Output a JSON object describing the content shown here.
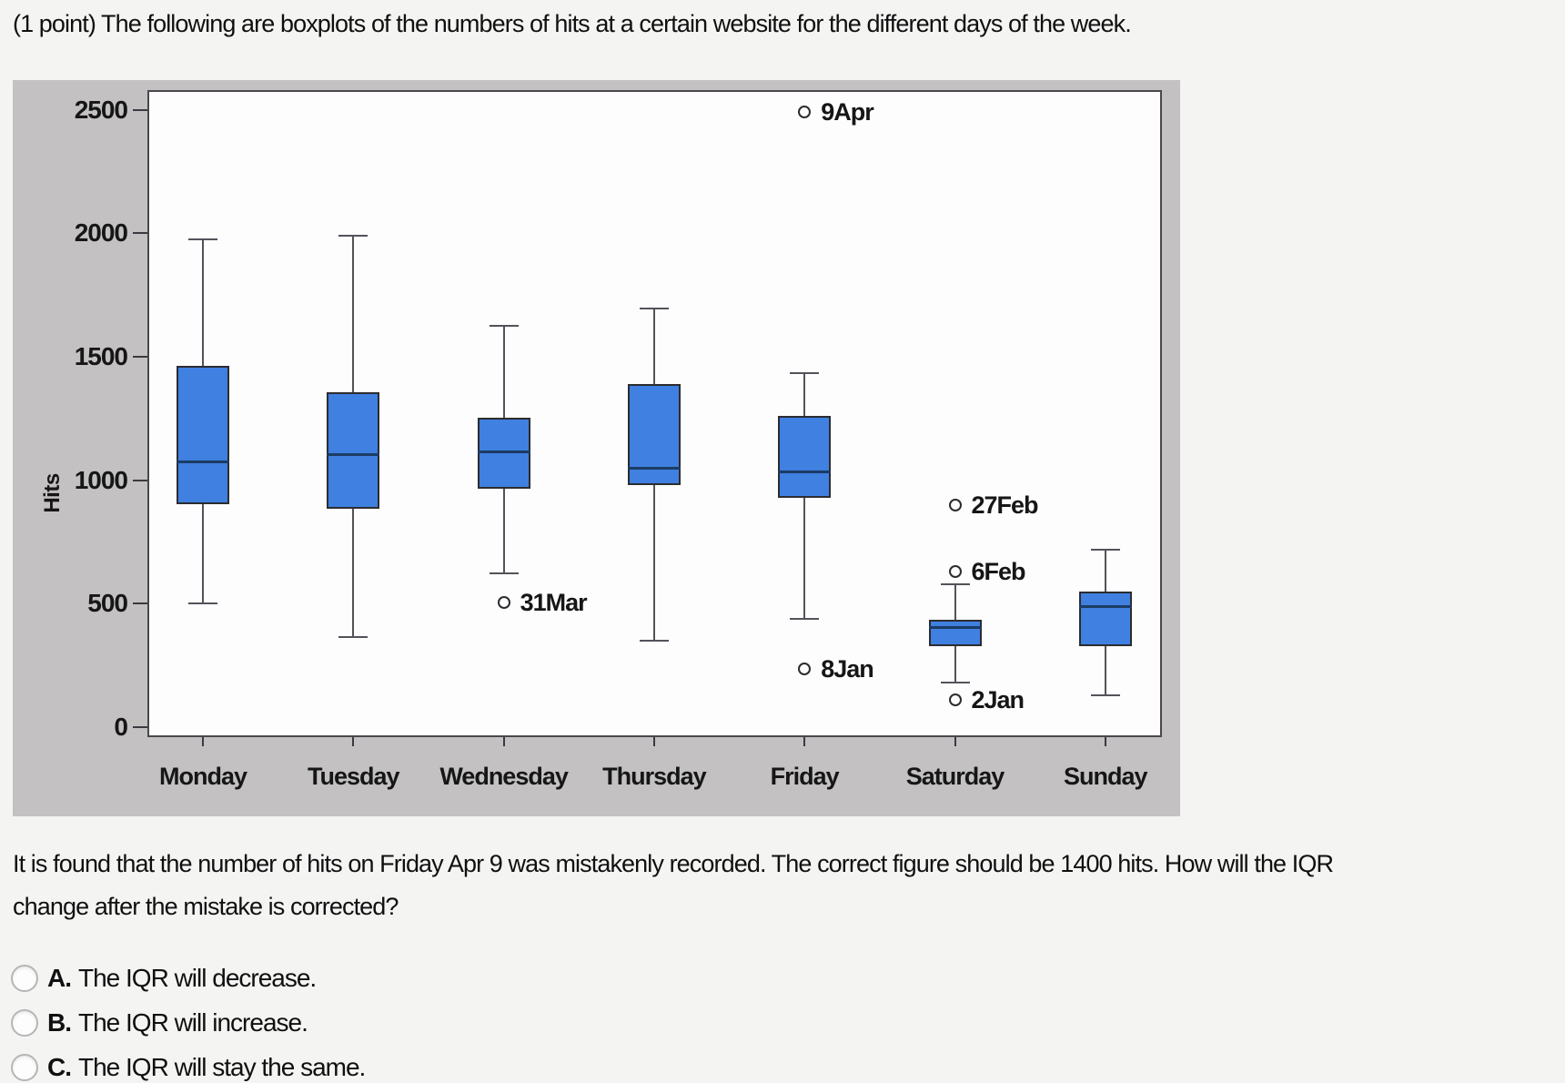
{
  "page": {
    "header": "(1 point) The following are boxplots of the numbers of hits at a certain website for the different days of the week.",
    "body_lines": [
      "It is found that the number of hits on Friday Apr 9 was mistakenly recorded. The correct figure should be 1400 hits. How will the IQR",
      "change after the mistake is corrected?"
    ],
    "options": [
      {
        "key": "A.",
        "label": "The IQR will decrease.",
        "selected": false
      },
      {
        "key": "B.",
        "label": "The IQR will increase.",
        "selected": false
      },
      {
        "key": "C.",
        "label": "The IQR will stay the same.",
        "selected": false
      }
    ]
  },
  "chart_data": {
    "type": "boxplot",
    "title": "",
    "xlabel": "",
    "ylabel": "Hits",
    "ylim": [
      -40,
      2580
    ],
    "yticks": [
      0,
      500,
      1000,
      1500,
      2000,
      2500
    ],
    "grid": false,
    "legend": null,
    "categories": [
      "Monday",
      "Tuesday",
      "Wednesday",
      "Thursday",
      "Friday",
      "Saturday",
      "Sunday"
    ],
    "series": [
      {
        "category": "Monday",
        "whisker_low": 500,
        "q1": 905,
        "median": 1075,
        "q3": 1465,
        "whisker_high": 1975,
        "outliers": []
      },
      {
        "category": "Tuesday",
        "whisker_low": 365,
        "q1": 885,
        "median": 1105,
        "q3": 1355,
        "whisker_high": 1990,
        "outliers": []
      },
      {
        "category": "Wednesday",
        "whisker_low": 625,
        "q1": 965,
        "median": 1115,
        "q3": 1255,
        "whisker_high": 1625,
        "outliers": [
          {
            "label": "31Mar",
            "value": 505
          }
        ]
      },
      {
        "category": "Thursday",
        "whisker_low": 350,
        "q1": 980,
        "median": 1050,
        "q3": 1390,
        "whisker_high": 1695,
        "outliers": []
      },
      {
        "category": "Friday",
        "whisker_low": 440,
        "q1": 930,
        "median": 1035,
        "q3": 1260,
        "whisker_high": 1435,
        "outliers": [
          {
            "label": "9Apr",
            "value": 2490
          },
          {
            "label": "8Jan",
            "value": 235
          }
        ]
      },
      {
        "category": "Saturday",
        "whisker_low": 180,
        "q1": 330,
        "median": 405,
        "q3": 435,
        "whisker_high": 580,
        "outliers": [
          {
            "label": "27Feb",
            "value": 900
          },
          {
            "label": "6Feb",
            "value": 630
          },
          {
            "label": "2Jan",
            "value": 110
          }
        ]
      },
      {
        "category": "Sunday",
        "whisker_low": 130,
        "q1": 330,
        "median": 490,
        "q3": 550,
        "whisker_high": 720,
        "outliers": []
      }
    ],
    "colors": {
      "box_fill": "#3f80e0",
      "box_border": "#2c2c30",
      "median": "#1c3c64",
      "whisker": "#54525a",
      "panel_bg": "#c3c1c2",
      "plot_bg": "#fdfdfd",
      "plot_border": "#4a484d",
      "text": "#101010"
    }
  }
}
